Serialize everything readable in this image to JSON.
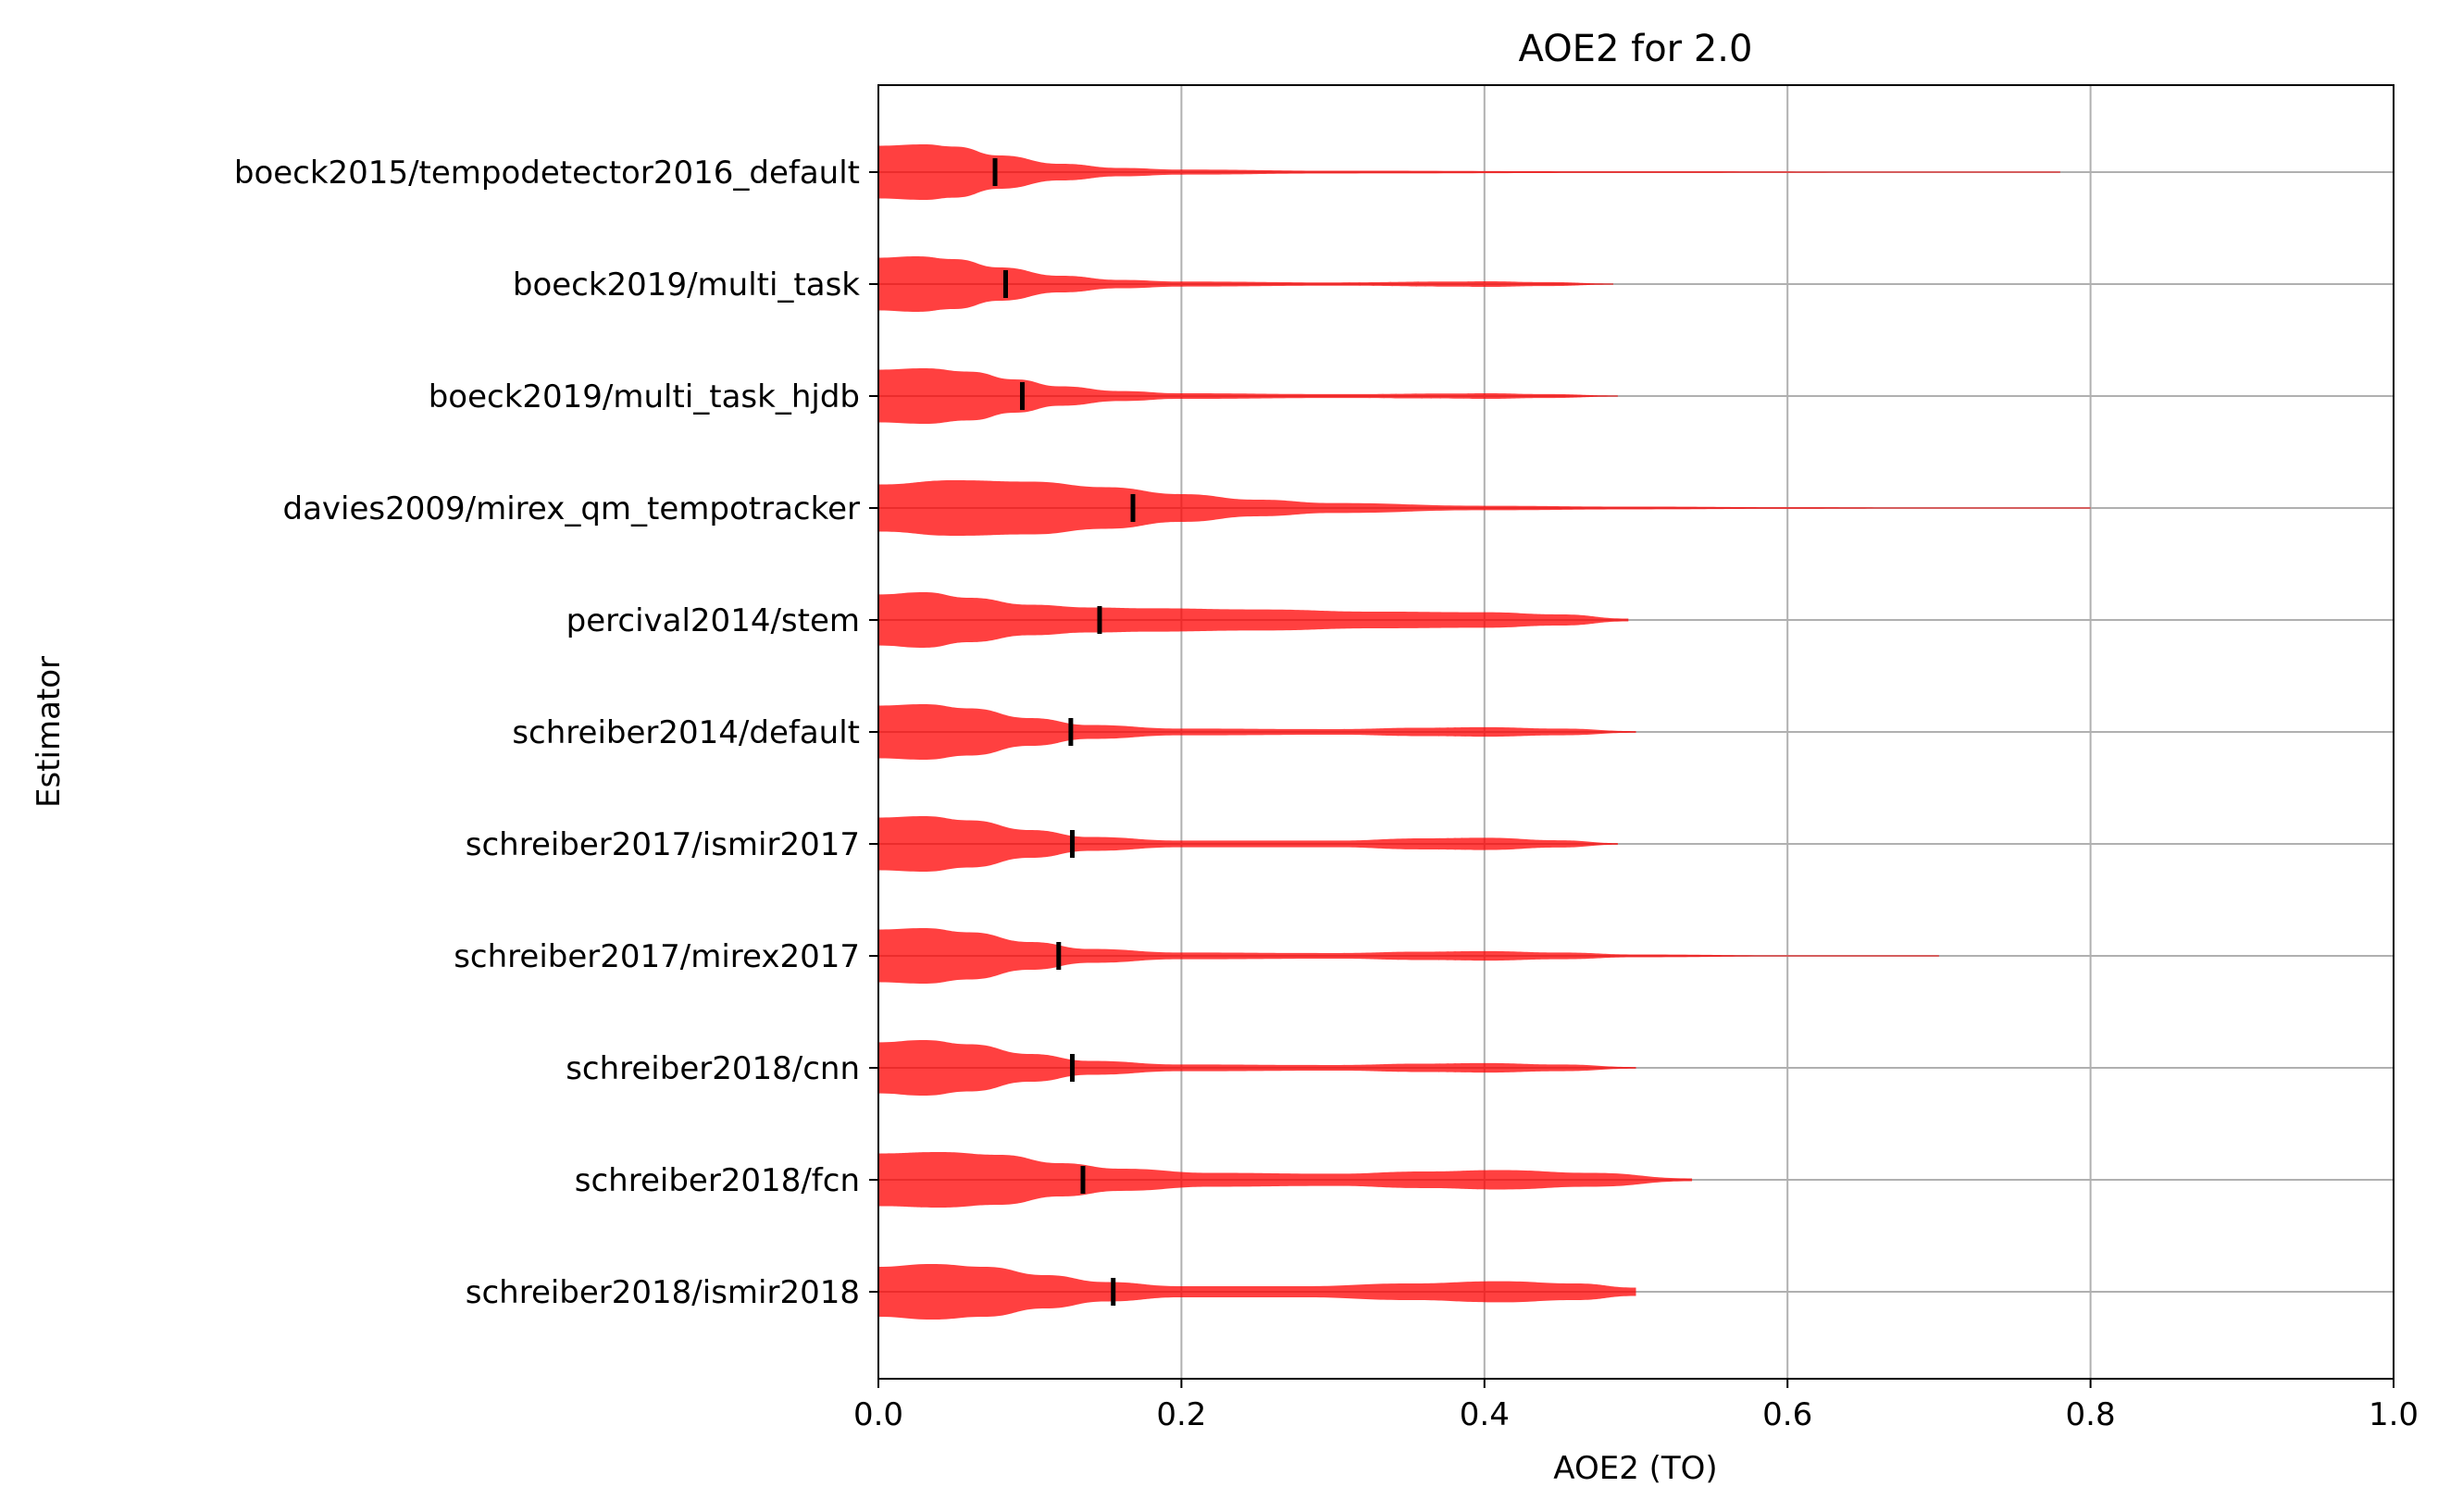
{
  "chart_data": {
    "type": "violin",
    "orientation": "horizontal",
    "title": "AOE2 for 2.0",
    "xlabel": "AOE2 (TO)",
    "ylabel": "Estimator",
    "xlim": [
      0.0,
      1.0
    ],
    "xticks": [
      "0.0",
      "0.2",
      "0.4",
      "0.6",
      "0.8",
      "1.0"
    ],
    "xtick_values": [
      0.0,
      0.2,
      0.4,
      0.6,
      0.8,
      1.0
    ],
    "grid": true,
    "violin_color": "#ff0000",
    "median_color": "#000000",
    "categories": [
      "boeck2015/tempodetector2016_default",
      "boeck2019/multi_task",
      "boeck2019/multi_task_hjdb",
      "davies2009/mirex_qm_tempotracker",
      "percival2014/stem",
      "schreiber2014/default",
      "schreiber2017/ismir2017",
      "schreiber2017/mirex2017",
      "schreiber2018/cnn",
      "schreiber2018/fcn",
      "schreiber2018/ismir2018"
    ],
    "series": [
      {
        "median": 0.077,
        "max": 0.78,
        "profile": [
          [
            0,
            0.95
          ],
          [
            0.03,
            1.0
          ],
          [
            0.05,
            0.92
          ],
          [
            0.08,
            0.6
          ],
          [
            0.12,
            0.3
          ],
          [
            0.16,
            0.15
          ],
          [
            0.2,
            0.09
          ],
          [
            0.3,
            0.05
          ],
          [
            0.5,
            0.03
          ],
          [
            0.7,
            0.02
          ],
          [
            0.78,
            0.01
          ]
        ]
      },
      {
        "median": 0.084,
        "max": 0.485,
        "profile": [
          [
            0,
            0.95
          ],
          [
            0.025,
            1.0
          ],
          [
            0.05,
            0.9
          ],
          [
            0.08,
            0.6
          ],
          [
            0.12,
            0.3
          ],
          [
            0.16,
            0.15
          ],
          [
            0.2,
            0.09
          ],
          [
            0.3,
            0.06
          ],
          [
            0.38,
            0.09
          ],
          [
            0.4,
            0.1
          ],
          [
            0.44,
            0.07
          ],
          [
            0.485,
            0.02
          ]
        ]
      },
      {
        "median": 0.095,
        "max": 0.488,
        "profile": [
          [
            0,
            0.95
          ],
          [
            0.03,
            1.0
          ],
          [
            0.06,
            0.88
          ],
          [
            0.09,
            0.6
          ],
          [
            0.12,
            0.35
          ],
          [
            0.16,
            0.18
          ],
          [
            0.2,
            0.1
          ],
          [
            0.3,
            0.07
          ],
          [
            0.38,
            0.09
          ],
          [
            0.4,
            0.1
          ],
          [
            0.44,
            0.07
          ],
          [
            0.488,
            0.02
          ]
        ]
      },
      {
        "median": 0.168,
        "max": 0.8,
        "profile": [
          [
            0,
            0.85
          ],
          [
            0.05,
            1.0
          ],
          [
            0.1,
            0.95
          ],
          [
            0.15,
            0.75
          ],
          [
            0.2,
            0.5
          ],
          [
            0.25,
            0.3
          ],
          [
            0.3,
            0.18
          ],
          [
            0.4,
            0.08
          ],
          [
            0.5,
            0.05
          ],
          [
            0.6,
            0.03
          ],
          [
            0.7,
            0.015
          ],
          [
            0.8,
            0.005
          ]
        ]
      },
      {
        "median": 0.146,
        "max": 0.495,
        "profile": [
          [
            0,
            0.92
          ],
          [
            0.03,
            1.0
          ],
          [
            0.06,
            0.8
          ],
          [
            0.1,
            0.55
          ],
          [
            0.14,
            0.45
          ],
          [
            0.18,
            0.42
          ],
          [
            0.25,
            0.38
          ],
          [
            0.33,
            0.3
          ],
          [
            0.4,
            0.28
          ],
          [
            0.45,
            0.2
          ],
          [
            0.495,
            0.05
          ]
        ]
      },
      {
        "median": 0.127,
        "max": 0.5,
        "profile": [
          [
            0,
            0.95
          ],
          [
            0.03,
            1.0
          ],
          [
            0.06,
            0.85
          ],
          [
            0.1,
            0.5
          ],
          [
            0.14,
            0.25
          ],
          [
            0.2,
            0.12
          ],
          [
            0.3,
            0.1
          ],
          [
            0.36,
            0.15
          ],
          [
            0.4,
            0.17
          ],
          [
            0.45,
            0.12
          ],
          [
            0.5,
            0.03
          ]
        ]
      },
      {
        "median": 0.128,
        "max": 0.488,
        "profile": [
          [
            0,
            0.95
          ],
          [
            0.03,
            1.0
          ],
          [
            0.06,
            0.85
          ],
          [
            0.1,
            0.5
          ],
          [
            0.14,
            0.25
          ],
          [
            0.2,
            0.12
          ],
          [
            0.3,
            0.12
          ],
          [
            0.36,
            0.2
          ],
          [
            0.4,
            0.22
          ],
          [
            0.45,
            0.13
          ],
          [
            0.488,
            0.03
          ]
        ]
      },
      {
        "median": 0.119,
        "max": 0.7,
        "profile": [
          [
            0,
            0.95
          ],
          [
            0.03,
            1.0
          ],
          [
            0.06,
            0.85
          ],
          [
            0.1,
            0.5
          ],
          [
            0.14,
            0.25
          ],
          [
            0.2,
            0.12
          ],
          [
            0.3,
            0.1
          ],
          [
            0.36,
            0.15
          ],
          [
            0.4,
            0.17
          ],
          [
            0.45,
            0.12
          ],
          [
            0.5,
            0.05
          ],
          [
            0.6,
            0.02
          ],
          [
            0.7,
            0.005
          ]
        ]
      },
      {
        "median": 0.128,
        "max": 0.5,
        "profile": [
          [
            0,
            0.92
          ],
          [
            0.03,
            1.0
          ],
          [
            0.06,
            0.85
          ],
          [
            0.1,
            0.5
          ],
          [
            0.14,
            0.25
          ],
          [
            0.2,
            0.12
          ],
          [
            0.3,
            0.1
          ],
          [
            0.36,
            0.15
          ],
          [
            0.4,
            0.17
          ],
          [
            0.45,
            0.12
          ],
          [
            0.5,
            0.03
          ]
        ]
      },
      {
        "median": 0.135,
        "max": 0.537,
        "profile": [
          [
            0,
            0.95
          ],
          [
            0.04,
            1.0
          ],
          [
            0.08,
            0.9
          ],
          [
            0.12,
            0.6
          ],
          [
            0.16,
            0.4
          ],
          [
            0.22,
            0.25
          ],
          [
            0.3,
            0.22
          ],
          [
            0.36,
            0.3
          ],
          [
            0.41,
            0.35
          ],
          [
            0.47,
            0.25
          ],
          [
            0.537,
            0.05
          ]
        ]
      },
      {
        "median": 0.155,
        "max": 0.5,
        "profile": [
          [
            0,
            0.9
          ],
          [
            0.035,
            1.0
          ],
          [
            0.07,
            0.9
          ],
          [
            0.11,
            0.6
          ],
          [
            0.15,
            0.35
          ],
          [
            0.2,
            0.2
          ],
          [
            0.28,
            0.2
          ],
          [
            0.35,
            0.3
          ],
          [
            0.41,
            0.38
          ],
          [
            0.46,
            0.3
          ],
          [
            0.5,
            0.15
          ]
        ]
      }
    ]
  }
}
